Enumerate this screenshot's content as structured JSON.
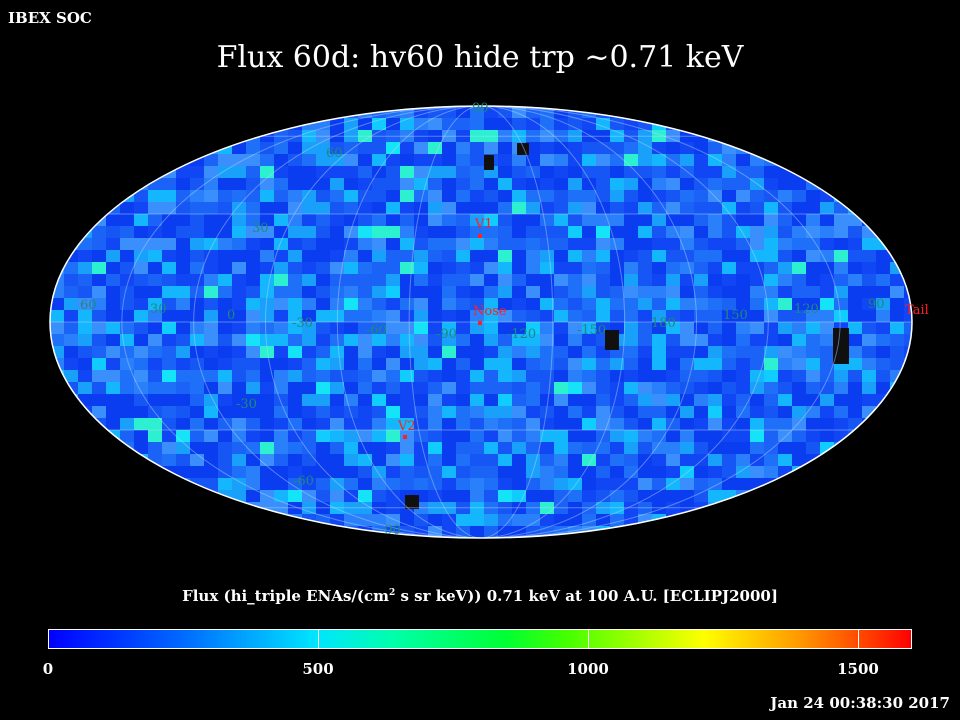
{
  "header": {
    "source": "IBEX SOC",
    "title": "Flux   60d: hv60 hide trp ~0.71 keV"
  },
  "map": {
    "projection": "mollweide",
    "colors": {
      "base": "#1f6ff0",
      "outline": "#ffffff",
      "grid": "#b8d6ff",
      "labels": "#1e8a7a",
      "markers": "#ff2020",
      "missing": "#101010"
    },
    "lat_labels": [
      "90",
      "60",
      "30",
      "-30",
      "-60",
      "-90"
    ],
    "lon_labels": [
      "60",
      "30",
      "0",
      "-30",
      "-60",
      "-90",
      "-120",
      "-150",
      "180",
      "150",
      "120",
      "90"
    ],
    "markers": [
      {
        "label": "V1"
      },
      {
        "label": "Nose"
      },
      {
        "label": "V2"
      },
      {
        "label": "Tail"
      }
    ]
  },
  "colorbar": {
    "title_pre": "Flux (hi_triple ENAs/(cm",
    "title_sup": "2",
    "title_post": " s sr keV))  0.71 keV at 100 A.U. [ECLIPJ2000]",
    "tick_labels": [
      "0",
      "500",
      "1000",
      "1500"
    ],
    "min": 0,
    "max": 1600
  },
  "footer": {
    "timestamp": "Jan 24 00:38:30 2017"
  }
}
